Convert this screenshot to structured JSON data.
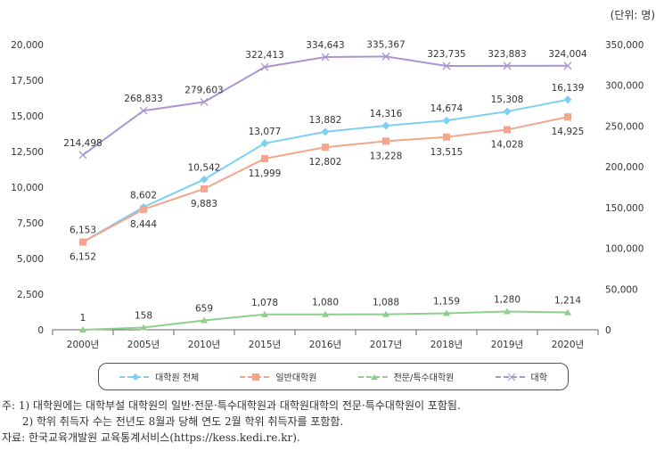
{
  "unit_label": "(단위: 명)",
  "chart_data": {
    "type": "line",
    "categories": [
      "2000년",
      "2005년",
      "2010년",
      "2015년",
      "2016년",
      "2017년",
      "2018년",
      "2019년",
      "2020년"
    ],
    "y_left": {
      "lim": [
        0,
        20000
      ],
      "ticks": [
        "0",
        "2,500",
        "5,000",
        "7,500",
        "10,000",
        "12,500",
        "15,000",
        "17,500",
        "20,000"
      ]
    },
    "y_right": {
      "lim": [
        0,
        350000
      ],
      "ticks": [
        "0",
        "50,000",
        "100,000",
        "150,000",
        "200,000",
        "250,000",
        "300,000",
        "350,000"
      ]
    },
    "grid": false,
    "legend_position": "bottom",
    "series": [
      {
        "name": "대학원 전체",
        "axis": "left",
        "color": "#7ed0f2",
        "marker": "diamond",
        "values": [
          6153,
          8602,
          10542,
          13077,
          13882,
          14316,
          14674,
          15308,
          16139
        ],
        "labels": [
          "6,153",
          "8,602",
          "10,542",
          "13,077",
          "13,882",
          "14,316",
          "14,674",
          "15,308",
          "16,139"
        ]
      },
      {
        "name": "일반대학원",
        "axis": "left",
        "color": "#f5a58c",
        "marker": "square",
        "values": [
          6152,
          8444,
          9883,
          11999,
          12802,
          13228,
          13515,
          14028,
          14925
        ],
        "labels": [
          "6,152",
          "8,444",
          "9,883",
          "11,999",
          "12,802",
          "13,228",
          "13,515",
          "14,028",
          "14,925"
        ]
      },
      {
        "name": "전문/특수대학원",
        "axis": "left",
        "color": "#8fcf8c",
        "marker": "triangle",
        "values": [
          1,
          158,
          659,
          1078,
          1080,
          1088,
          1159,
          1280,
          1214
        ],
        "labels": [
          "1",
          "158",
          "659",
          "1,078",
          "1,080",
          "1,088",
          "1,159",
          "1,280",
          "1,214"
        ]
      },
      {
        "name": "대학",
        "axis": "right",
        "color": "#a996cf",
        "marker": "x",
        "values": [
          214498,
          268833,
          279603,
          322413,
          334643,
          335367,
          323735,
          323883,
          324004
        ],
        "labels": [
          "214,498",
          "268,833",
          "279,603",
          "322,413",
          "334,643",
          "335,367",
          "323,735",
          "323,883",
          "324,004"
        ]
      }
    ]
  },
  "notes": [
    "주: 1) 대학원에는 대학부설 대학원의 일반·전문·특수대학원과 대학원대학의 전문·특수대학원이 포함됨.",
    "      2) 학위 취득자 수는 전년도 8월과 당해 연도 2월 학위 취득자를 포함함.",
    "자료: 한국교육개발원 교육통계서비스(https://kess.kedi.re.kr)."
  ]
}
